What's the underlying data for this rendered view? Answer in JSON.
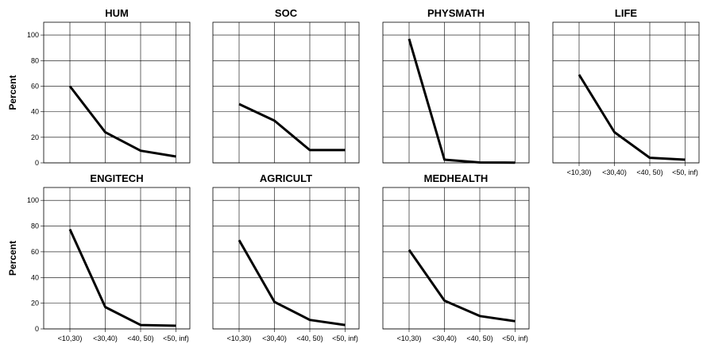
{
  "chart_data": {
    "type": "line",
    "ylabel": "Percent",
    "categories": [
      "<10,30)",
      "<30,40)",
      "<40, 50)",
      "<50, inf)"
    ],
    "ylim": [
      0,
      110
    ],
    "yticks": [
      0,
      20,
      40,
      60,
      80,
      100
    ],
    "grid": true,
    "panels": [
      {
        "title": "HUM",
        "values": [
          60,
          24,
          9.5,
          5
        ]
      },
      {
        "title": "SOC",
        "values": [
          46,
          33,
          10,
          10
        ]
      },
      {
        "title": "PHYSMATH",
        "values": [
          97,
          2.5,
          0.3,
          0.2
        ]
      },
      {
        "title": "LIFE",
        "values": [
          69,
          24,
          4,
          2.5
        ]
      },
      {
        "title": "ENGITECH",
        "values": [
          77.5,
          17,
          3,
          2.5
        ]
      },
      {
        "title": "AGRICULT",
        "values": [
          69,
          21,
          7,
          3
        ]
      },
      {
        "title": "MEDHEALTH",
        "values": [
          61.5,
          22,
          10,
          6
        ]
      }
    ]
  }
}
